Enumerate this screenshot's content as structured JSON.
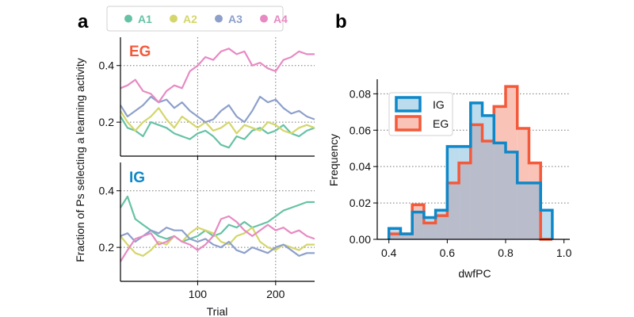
{
  "figure": {
    "panel_a_letter": "a",
    "panel_b_letter": "b",
    "ylabel_a": "Fraction of Ps selecting a learning activity",
    "xlabel_a": "Trial",
    "tag_top": "EG",
    "tag_bottom": "IG",
    "xlabel_b": "dwfPC",
    "ylabel_b": "Frequency"
  },
  "colors": {
    "A1": "#66c2a5",
    "A2": "#d4d66a",
    "A3": "#8da0cb",
    "A4": "#e78ac3",
    "EG": "#f4593a",
    "IG": "#0e88c8",
    "EG_fill": "#f9c3b8",
    "IG_fill": "#bcdcee",
    "overlap_fill": "#b9bccb"
  },
  "chart_data": [
    {
      "type": "line",
      "panel": "a-top",
      "title": "EG",
      "xlabel": "",
      "ylabel": "Fraction of Ps selecting a learning activity",
      "xlim": [
        1,
        250
      ],
      "ylim": [
        0.08,
        0.5
      ],
      "xticks": [
        100,
        200
      ],
      "yticks": [
        0.2,
        0.4
      ],
      "grid": true,
      "legend": {
        "placement": "top",
        "entries": [
          "A1",
          "A2",
          "A3",
          "A4"
        ]
      },
      "x": [
        1,
        10,
        20,
        30,
        40,
        50,
        60,
        70,
        80,
        90,
        100,
        110,
        120,
        130,
        140,
        150,
        160,
        170,
        180,
        190,
        200,
        210,
        220,
        230,
        240,
        250
      ],
      "series": [
        {
          "name": "A1",
          "values": [
            0.22,
            0.18,
            0.17,
            0.15,
            0.2,
            0.19,
            0.18,
            0.16,
            0.15,
            0.14,
            0.16,
            0.17,
            0.15,
            0.12,
            0.11,
            0.15,
            0.14,
            0.17,
            0.18,
            0.16,
            0.17,
            0.19,
            0.16,
            0.15,
            0.17,
            0.18
          ]
        },
        {
          "name": "A2",
          "values": [
            0.24,
            0.2,
            0.17,
            0.2,
            0.22,
            0.25,
            0.21,
            0.18,
            0.22,
            0.2,
            0.18,
            0.2,
            0.17,
            0.18,
            0.2,
            0.16,
            0.19,
            0.18,
            0.17,
            0.2,
            0.19,
            0.17,
            0.16,
            0.18,
            0.19,
            0.18
          ]
        },
        {
          "name": "A3",
          "values": [
            0.26,
            0.22,
            0.24,
            0.26,
            0.29,
            0.27,
            0.28,
            0.25,
            0.27,
            0.24,
            0.22,
            0.2,
            0.21,
            0.24,
            0.26,
            0.22,
            0.2,
            0.24,
            0.29,
            0.27,
            0.28,
            0.25,
            0.23,
            0.24,
            0.22,
            0.21
          ]
        },
        {
          "name": "A4",
          "values": [
            0.32,
            0.33,
            0.35,
            0.31,
            0.3,
            0.27,
            0.31,
            0.33,
            0.32,
            0.38,
            0.4,
            0.43,
            0.42,
            0.45,
            0.46,
            0.44,
            0.45,
            0.4,
            0.41,
            0.39,
            0.38,
            0.42,
            0.43,
            0.45,
            0.44,
            0.44
          ]
        }
      ]
    },
    {
      "type": "line",
      "panel": "a-bottom",
      "title": "IG",
      "xlabel": "Trial",
      "ylabel": "",
      "xlim": [
        1,
        250
      ],
      "ylim": [
        0.08,
        0.5
      ],
      "xticks": [
        100,
        200
      ],
      "yticks": [
        0.2,
        0.4
      ],
      "grid": true,
      "x": [
        1,
        10,
        20,
        30,
        40,
        50,
        60,
        70,
        80,
        90,
        100,
        110,
        120,
        130,
        140,
        150,
        160,
        170,
        180,
        190,
        200,
        210,
        220,
        230,
        240,
        250
      ],
      "series": [
        {
          "name": "A1",
          "values": [
            0.34,
            0.38,
            0.3,
            0.28,
            0.26,
            0.24,
            0.23,
            0.24,
            0.22,
            0.23,
            0.24,
            0.26,
            0.24,
            0.25,
            0.28,
            0.27,
            0.29,
            0.27,
            0.28,
            0.29,
            0.31,
            0.33,
            0.34,
            0.35,
            0.36,
            0.36
          ]
        },
        {
          "name": "A2",
          "values": [
            0.24,
            0.21,
            0.18,
            0.17,
            0.19,
            0.22,
            0.21,
            0.24,
            0.22,
            0.25,
            0.27,
            0.26,
            0.25,
            0.22,
            0.21,
            0.24,
            0.25,
            0.27,
            0.22,
            0.2,
            0.19,
            0.21,
            0.2,
            0.19,
            0.21,
            0.21
          ]
        },
        {
          "name": "A3",
          "values": [
            0.24,
            0.25,
            0.22,
            0.24,
            0.26,
            0.25,
            0.27,
            0.26,
            0.26,
            0.23,
            0.22,
            0.23,
            0.21,
            0.2,
            0.22,
            0.19,
            0.18,
            0.2,
            0.19,
            0.18,
            0.2,
            0.21,
            0.19,
            0.17,
            0.18,
            0.18
          ]
        },
        {
          "name": "A4",
          "values": [
            0.15,
            0.19,
            0.23,
            0.24,
            0.25,
            0.21,
            0.22,
            0.24,
            0.22,
            0.21,
            0.19,
            0.21,
            0.24,
            0.3,
            0.31,
            0.29,
            0.26,
            0.24,
            0.26,
            0.28,
            0.26,
            0.27,
            0.25,
            0.26,
            0.24,
            0.23
          ]
        }
      ]
    },
    {
      "type": "histogram",
      "panel": "b",
      "xlabel": "dwfPC",
      "ylabel": "Frequency",
      "xlim": [
        0.36,
        1.02
      ],
      "ylim": [
        0,
        0.088
      ],
      "xticks": [
        0.4,
        0.6,
        0.8,
        1.0
      ],
      "xtick_labels": [
        "0.4",
        "0.6",
        "0.8",
        "1.0"
      ],
      "yticks": [
        0,
        0.02,
        0.04,
        0.06,
        0.08
      ],
      "ytick_labels": [
        "0.00",
        "0.02",
        "0.04",
        "0.06",
        "0.08"
      ],
      "grid": true,
      "legend": {
        "placement": "top-left",
        "entries": [
          "IG",
          "EG"
        ]
      },
      "bin_edges": [
        0.4,
        0.44,
        0.48,
        0.52,
        0.56,
        0.6,
        0.64,
        0.68,
        0.72,
        0.76,
        0.8,
        0.84,
        0.88,
        0.92,
        0.96
      ],
      "series": [
        {
          "name": "IG",
          "values": [
            0.006,
            0.003,
            0.015,
            0.012,
            0.016,
            0.051,
            0.051,
            0.075,
            0.068,
            0.053,
            0.048,
            0.031,
            0.031,
            0.016
          ]
        },
        {
          "name": "EG",
          "values": [
            0.003,
            0.003,
            0.019,
            0.009,
            0.013,
            0.031,
            0.042,
            0.063,
            0.054,
            0.073,
            0.084,
            0.061,
            0.042,
            0.0
          ]
        }
      ]
    }
  ]
}
